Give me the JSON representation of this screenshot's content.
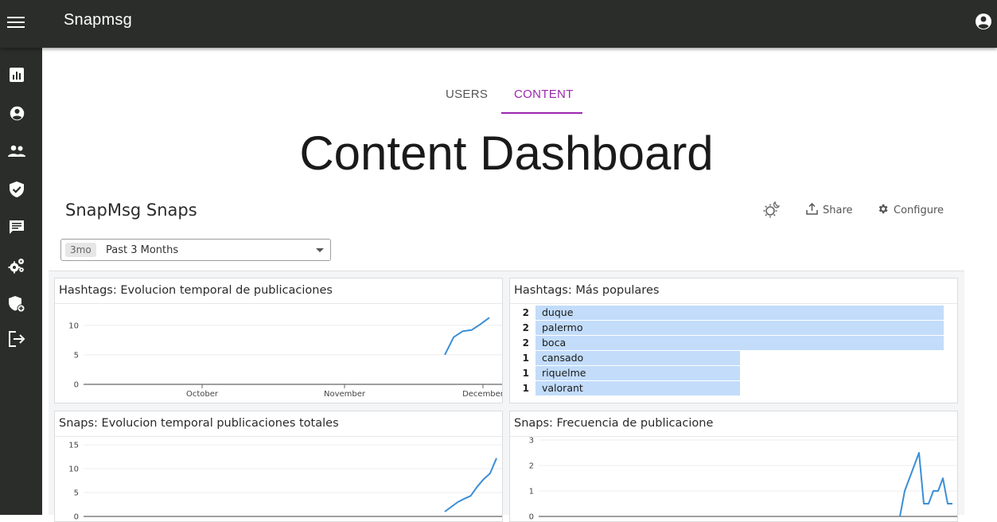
{
  "app": {
    "title": "Snapmsg"
  },
  "icons": {
    "menu": "menu-icon",
    "account": "account-circle-icon",
    "sidebar": [
      "bar-chart-icon",
      "account-circle-icon",
      "people-icon",
      "verified-shield-icon",
      "chat-message-icon",
      "settings-gears-icon",
      "admin-shield-add-icon",
      "logout-icon"
    ]
  },
  "colors": {
    "topbar": "#2b2d2b",
    "accent": "#9c27b0",
    "line": "#3b8ed8",
    "bar": "#c2dcfa"
  },
  "tabs": [
    {
      "label": "USERS",
      "active": false
    },
    {
      "label": "CONTENT",
      "active": true
    }
  ],
  "page": {
    "title": "Content Dashboard"
  },
  "dashboard": {
    "title": "SnapMsg Snaps",
    "share_label": "Share",
    "configure_label": "Configure",
    "time_range": {
      "chip": "3mo",
      "label": "Past 3 Months"
    }
  },
  "cards": {
    "hashtag_trend": {
      "title": "Hashtags: Evolucion temporal de publicaciones"
    },
    "hashtag_popular": {
      "title": "Hashtags: Más populares"
    },
    "snaps_total": {
      "title": "Snaps: Evolucion temporal publicaciones totales"
    },
    "snaps_freq": {
      "title": "Snaps: Frecuencia de publicacione"
    }
  },
  "chart_data": [
    {
      "type": "line",
      "title": "Hashtags: Evolucion temporal de publicaciones",
      "x": [
        "2023-11-24",
        "2023-11-25",
        "2023-11-29",
        "2023-11-30",
        "2023-12-01",
        "2023-12-03"
      ],
      "values": [
        5,
        8,
        9,
        9.2,
        10.2,
        11.3
      ],
      "ylim": [
        0,
        12
      ],
      "yticks": [
        0,
        5,
        10
      ],
      "xticks": [
        "October",
        "November",
        "December"
      ],
      "grid": true
    },
    {
      "type": "bar",
      "title": "Hashtags: Más populares",
      "categories": [
        "duque",
        "palermo",
        "boca",
        "cansado",
        "riquelme",
        "valorant"
      ],
      "values": [
        2,
        2,
        2,
        1,
        1,
        1
      ]
    },
    {
      "type": "line",
      "title": "Snaps: Evolucion temporal publicaciones totales",
      "values": [
        1,
        2,
        3,
        3.7,
        4.3,
        6.2,
        7.8,
        9,
        12.2
      ],
      "ylim": [
        0,
        15
      ],
      "yticks": [
        0,
        5,
        10,
        15
      ],
      "grid": true
    },
    {
      "type": "line",
      "title": "Snaps: Frecuencia de publicacione",
      "values": [
        0,
        1,
        1.5,
        2,
        2.5,
        0.5,
        0.5,
        1,
        1,
        1.5,
        0.5,
        0.5
      ],
      "ylim": [
        0,
        3
      ],
      "yticks": [
        0,
        1,
        2,
        3
      ],
      "grid": true
    }
  ]
}
